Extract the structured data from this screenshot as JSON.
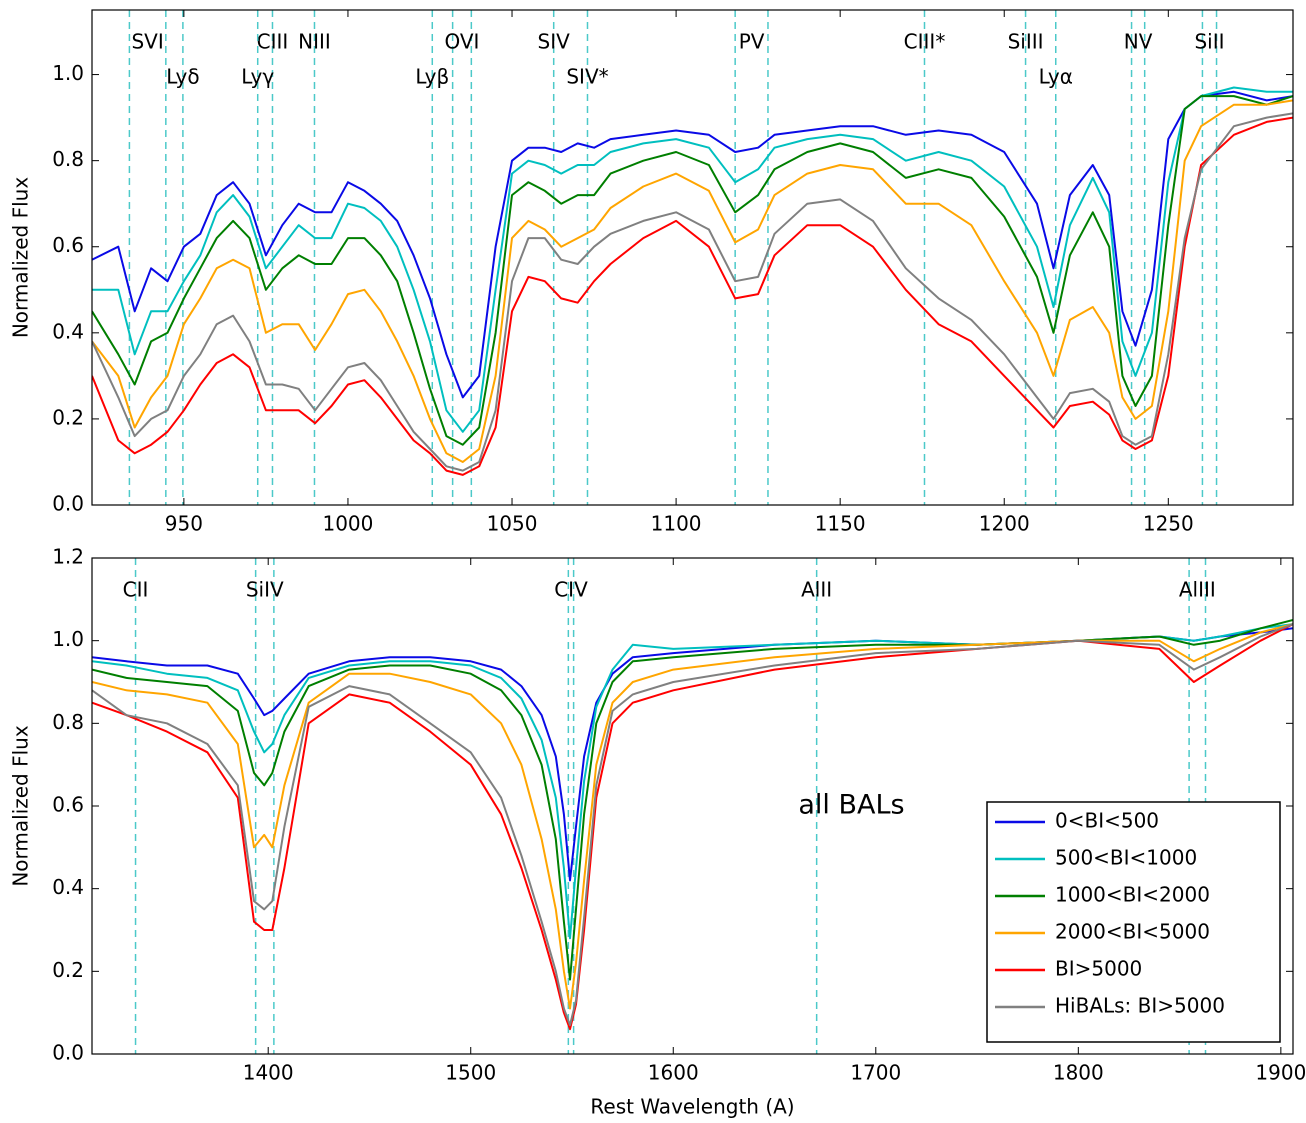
{
  "chart_data": [
    {
      "type": "line",
      "ylabel": "Normalized Flux",
      "xlim": [
        922,
        1288
      ],
      "ylim": [
        0,
        1.15
      ],
      "xticks": [
        950,
        1000,
        1050,
        1100,
        1150,
        1200,
        1250
      ],
      "yticks": [
        {
          "value": 0,
          "label": "0.0"
        },
        0.2,
        0.4,
        0.6,
        0.8,
        {
          "value": 1,
          "label": "1.0"
        }
      ],
      "lines": [
        {
          "label": "SVI",
          "wavelengths": [
            933.4,
            944.5
          ]
        },
        {
          "label": "CIII",
          "wavelengths": [
            977.0
          ]
        },
        {
          "label": "NIII",
          "wavelengths": [
            989.8
          ]
        },
        {
          "label": "OVI",
          "wavelengths": [
            1031.9,
            1037.6
          ]
        },
        {
          "label": "SIV",
          "wavelengths": [
            1062.7
          ]
        },
        {
          "label": "PV",
          "wavelengths": [
            1118.0,
            1128.0
          ]
        },
        {
          "label": "CIII*",
          "wavelengths": [
            1175.7
          ]
        },
        {
          "label": "SiIII",
          "wavelengths": [
            1206.5
          ]
        },
        {
          "label": "NV",
          "wavelengths": [
            1238.8,
            1242.8
          ]
        },
        {
          "label": "SiII",
          "wavelengths": [
            1260.4,
            1264.7
          ]
        },
        {
          "label": "Lyδ",
          "wavelengths": [
            949.7
          ]
        },
        {
          "label": "Lyγ",
          "wavelengths": [
            972.5
          ]
        },
        {
          "label": "Lyβ",
          "wavelengths": [
            1025.7
          ]
        },
        {
          "label": "SIV*",
          "wavelengths": [
            1073.0
          ]
        },
        {
          "label": "Lyα",
          "wavelengths": [
            1215.7
          ]
        }
      ],
      "x": [
        922,
        930,
        935,
        940,
        945,
        950,
        955,
        960,
        965,
        970,
        975,
        980,
        985,
        990,
        995,
        1000,
        1005,
        1010,
        1015,
        1020,
        1025,
        1030,
        1035,
        1040,
        1045,
        1050,
        1055,
        1060,
        1065,
        1070,
        1075,
        1080,
        1090,
        1100,
        1110,
        1118,
        1125,
        1130,
        1140,
        1150,
        1160,
        1170,
        1180,
        1190,
        1200,
        1210,
        1215,
        1220,
        1227,
        1232,
        1236,
        1240,
        1245,
        1250,
        1255,
        1260,
        1270,
        1280,
        1288
      ],
      "series": [
        {
          "color": "#0a0ae6",
          "values": [
            0.57,
            0.6,
            0.45,
            0.55,
            0.52,
            0.6,
            0.63,
            0.72,
            0.75,
            0.7,
            0.58,
            0.65,
            0.7,
            0.68,
            0.68,
            0.75,
            0.73,
            0.7,
            0.66,
            0.58,
            0.48,
            0.35,
            0.25,
            0.3,
            0.6,
            0.8,
            0.83,
            0.83,
            0.82,
            0.84,
            0.83,
            0.85,
            0.86,
            0.87,
            0.86,
            0.82,
            0.83,
            0.86,
            0.87,
            0.88,
            0.88,
            0.86,
            0.87,
            0.86,
            0.82,
            0.7,
            0.55,
            0.72,
            0.79,
            0.72,
            0.45,
            0.37,
            0.5,
            0.85,
            0.92,
            0.95,
            0.96,
            0.94,
            0.95
          ]
        },
        {
          "color": "#00bfbf",
          "values": [
            0.5,
            0.5,
            0.35,
            0.45,
            0.45,
            0.52,
            0.58,
            0.68,
            0.72,
            0.67,
            0.55,
            0.6,
            0.65,
            0.62,
            0.62,
            0.7,
            0.69,
            0.66,
            0.6,
            0.5,
            0.38,
            0.22,
            0.17,
            0.22,
            0.5,
            0.77,
            0.8,
            0.79,
            0.77,
            0.79,
            0.79,
            0.82,
            0.84,
            0.85,
            0.83,
            0.75,
            0.78,
            0.83,
            0.85,
            0.86,
            0.85,
            0.8,
            0.82,
            0.8,
            0.74,
            0.6,
            0.46,
            0.65,
            0.76,
            0.68,
            0.38,
            0.3,
            0.4,
            0.75,
            0.92,
            0.95,
            0.97,
            0.96,
            0.96
          ]
        },
        {
          "color": "#007f00",
          "values": [
            0.45,
            0.35,
            0.28,
            0.38,
            0.4,
            0.48,
            0.55,
            0.62,
            0.66,
            0.62,
            0.5,
            0.55,
            0.58,
            0.56,
            0.56,
            0.62,
            0.62,
            0.58,
            0.52,
            0.4,
            0.27,
            0.16,
            0.14,
            0.18,
            0.4,
            0.72,
            0.75,
            0.73,
            0.7,
            0.72,
            0.72,
            0.77,
            0.8,
            0.82,
            0.79,
            0.68,
            0.72,
            0.78,
            0.82,
            0.84,
            0.82,
            0.76,
            0.78,
            0.76,
            0.67,
            0.53,
            0.4,
            0.58,
            0.68,
            0.6,
            0.3,
            0.23,
            0.3,
            0.65,
            0.92,
            0.95,
            0.95,
            0.93,
            0.95
          ]
        },
        {
          "color": "#ffa500",
          "values": [
            0.38,
            0.3,
            0.18,
            0.25,
            0.3,
            0.42,
            0.48,
            0.55,
            0.57,
            0.55,
            0.4,
            0.42,
            0.42,
            0.36,
            0.42,
            0.49,
            0.5,
            0.45,
            0.38,
            0.3,
            0.2,
            0.12,
            0.1,
            0.13,
            0.3,
            0.62,
            0.66,
            0.64,
            0.6,
            0.62,
            0.64,
            0.69,
            0.74,
            0.77,
            0.73,
            0.61,
            0.64,
            0.72,
            0.77,
            0.79,
            0.78,
            0.7,
            0.7,
            0.65,
            0.52,
            0.4,
            0.3,
            0.43,
            0.46,
            0.4,
            0.25,
            0.2,
            0.23,
            0.45,
            0.8,
            0.88,
            0.93,
            0.93,
            0.94
          ]
        },
        {
          "color": "#ff0000",
          "values": [
            0.3,
            0.15,
            0.12,
            0.14,
            0.17,
            0.22,
            0.28,
            0.33,
            0.35,
            0.32,
            0.22,
            0.22,
            0.22,
            0.19,
            0.23,
            0.28,
            0.29,
            0.25,
            0.2,
            0.15,
            0.12,
            0.08,
            0.07,
            0.09,
            0.18,
            0.45,
            0.53,
            0.52,
            0.48,
            0.47,
            0.52,
            0.56,
            0.62,
            0.66,
            0.6,
            0.48,
            0.49,
            0.58,
            0.65,
            0.65,
            0.6,
            0.5,
            0.42,
            0.38,
            0.3,
            0.22,
            0.18,
            0.23,
            0.24,
            0.21,
            0.15,
            0.13,
            0.15,
            0.3,
            0.6,
            0.79,
            0.86,
            0.89,
            0.9
          ]
        },
        {
          "color": "#808080",
          "values": [
            0.38,
            0.25,
            0.16,
            0.2,
            0.22,
            0.3,
            0.35,
            0.42,
            0.44,
            0.38,
            0.28,
            0.28,
            0.27,
            0.22,
            0.27,
            0.32,
            0.33,
            0.29,
            0.23,
            0.17,
            0.13,
            0.09,
            0.08,
            0.1,
            0.22,
            0.52,
            0.62,
            0.62,
            0.57,
            0.56,
            0.6,
            0.63,
            0.66,
            0.68,
            0.64,
            0.52,
            0.53,
            0.63,
            0.7,
            0.71,
            0.66,
            0.55,
            0.48,
            0.43,
            0.35,
            0.25,
            0.2,
            0.26,
            0.27,
            0.24,
            0.16,
            0.14,
            0.16,
            0.35,
            0.62,
            0.78,
            0.88,
            0.9,
            0.91
          ]
        }
      ]
    },
    {
      "type": "line",
      "xlabel": "Rest Wavelength (A)",
      "ylabel": "Normalized Flux",
      "xlim": [
        1313,
        1906
      ],
      "ylim": [
        0,
        1.2
      ],
      "xticks": [
        1400,
        1500,
        1600,
        1700,
        1800,
        1900
      ],
      "yticks": [
        {
          "value": 0,
          "label": "0.0"
        },
        0.2,
        0.4,
        0.6,
        0.8,
        {
          "value": 1,
          "label": "1.0"
        },
        1.2
      ],
      "legend": "lower right",
      "annotations": [
        {
          "text": "all BALs",
          "x": 1688,
          "y": 0.6
        }
      ],
      "lines": [
        {
          "label": "CII",
          "wavelengths": [
            1334.5
          ]
        },
        {
          "label": "SiIV",
          "wavelengths": [
            1393.8,
            1402.8
          ]
        },
        {
          "label": "CIV",
          "wavelengths": [
            1548.2,
            1550.8
          ]
        },
        {
          "label": "AlII",
          "wavelengths": [
            1670.8
          ]
        },
        {
          "label": "AlIII",
          "wavelengths": [
            1854.7,
            1862.8
          ]
        }
      ],
      "x": [
        1313,
        1330,
        1350,
        1370,
        1385,
        1393,
        1398,
        1402,
        1408,
        1420,
        1440,
        1460,
        1480,
        1500,
        1515,
        1525,
        1535,
        1542,
        1546,
        1549,
        1552,
        1556,
        1562,
        1570,
        1580,
        1600,
        1650,
        1700,
        1750,
        1800,
        1840,
        1857,
        1870,
        1890,
        1906
      ],
      "series": [
        {
          "name": "0<BI<500",
          "color": "#0a0ae6",
          "values": [
            0.96,
            0.95,
            0.94,
            0.94,
            0.92,
            0.86,
            0.82,
            0.83,
            0.86,
            0.92,
            0.95,
            0.96,
            0.96,
            0.95,
            0.93,
            0.89,
            0.82,
            0.72,
            0.58,
            0.42,
            0.55,
            0.72,
            0.85,
            0.92,
            0.96,
            0.97,
            0.99,
            1.0,
            0.99,
            1.0,
            1.01,
            1.0,
            1.01,
            1.02,
            1.03
          ]
        },
        {
          "name": "500<BI<1000",
          "color": "#00bfbf",
          "values": [
            0.95,
            0.94,
            0.92,
            0.91,
            0.88,
            0.78,
            0.73,
            0.75,
            0.82,
            0.91,
            0.94,
            0.95,
            0.95,
            0.94,
            0.91,
            0.86,
            0.76,
            0.62,
            0.45,
            0.28,
            0.45,
            0.66,
            0.84,
            0.93,
            0.99,
            0.98,
            0.99,
            1.0,
            0.99,
            1.0,
            1.01,
            1.0,
            1.01,
            1.03,
            1.04
          ]
        },
        {
          "name": "1000<BI<2000",
          "color": "#007f00",
          "values": [
            0.93,
            0.91,
            0.9,
            0.89,
            0.83,
            0.68,
            0.65,
            0.68,
            0.78,
            0.89,
            0.93,
            0.94,
            0.94,
            0.92,
            0.88,
            0.82,
            0.7,
            0.52,
            0.32,
            0.18,
            0.35,
            0.58,
            0.8,
            0.9,
            0.95,
            0.96,
            0.98,
            0.99,
            0.99,
            1.0,
            1.01,
            0.99,
            1.0,
            1.03,
            1.05
          ]
        },
        {
          "name": "2000<BI<5000",
          "color": "#ffa500",
          "values": [
            0.9,
            0.88,
            0.87,
            0.85,
            0.75,
            0.5,
            0.53,
            0.5,
            0.65,
            0.85,
            0.92,
            0.92,
            0.9,
            0.87,
            0.8,
            0.7,
            0.52,
            0.35,
            0.2,
            0.11,
            0.22,
            0.42,
            0.7,
            0.85,
            0.9,
            0.93,
            0.96,
            0.98,
            0.99,
            1.0,
            1.0,
            0.95,
            0.98,
            1.02,
            1.04
          ]
        },
        {
          "name": "BI>5000",
          "color": "#ff0000",
          "values": [
            0.85,
            0.82,
            0.78,
            0.73,
            0.62,
            0.32,
            0.3,
            0.3,
            0.45,
            0.8,
            0.87,
            0.85,
            0.78,
            0.7,
            0.58,
            0.45,
            0.3,
            0.18,
            0.1,
            0.06,
            0.12,
            0.3,
            0.62,
            0.8,
            0.85,
            0.88,
            0.93,
            0.96,
            0.98,
            1.0,
            0.98,
            0.9,
            0.94,
            1.0,
            1.04
          ]
        },
        {
          "name": "HiBALs: BI>5000",
          "color": "#808080",
          "values": [
            0.88,
            0.82,
            0.8,
            0.75,
            0.65,
            0.37,
            0.35,
            0.37,
            0.55,
            0.84,
            0.89,
            0.87,
            0.8,
            0.73,
            0.62,
            0.48,
            0.32,
            0.2,
            0.11,
            0.07,
            0.13,
            0.33,
            0.65,
            0.83,
            0.87,
            0.9,
            0.94,
            0.97,
            0.98,
            1.0,
            0.99,
            0.93,
            0.96,
            1.01,
            1.04
          ]
        }
      ]
    }
  ]
}
